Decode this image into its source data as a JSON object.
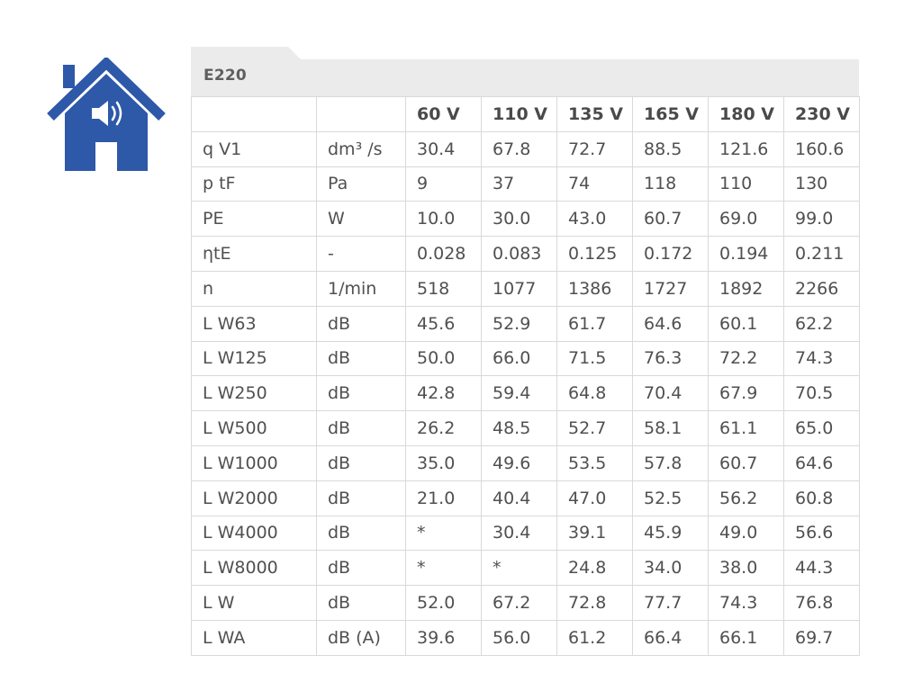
{
  "colors": {
    "house": "#2e58a8",
    "header_band": "#ebebeb",
    "grid": "#d9d9d9",
    "text": "#505050"
  },
  "icon": {
    "name": "house-speaker-icon"
  },
  "table": {
    "title": "E220",
    "columns": [
      "",
      "",
      "60 V",
      "110 V",
      "135 V",
      "165 V",
      "180 V",
      "230 V"
    ],
    "rows": [
      {
        "param": "q V1",
        "unit": "dm³ /s",
        "values": [
          "30.4",
          "67.8",
          "72.7",
          "88.5",
          "121.6",
          "160.6"
        ]
      },
      {
        "param": "p tF",
        "unit": "Pa",
        "values": [
          "9",
          "37",
          "74",
          "118",
          "110",
          "130"
        ]
      },
      {
        "param": "PE",
        "unit": "W",
        "values": [
          "10.0",
          "30.0",
          "43.0",
          "60.7",
          "69.0",
          "99.0"
        ]
      },
      {
        "param": "ηtE",
        "unit": "-",
        "values": [
          "0.028",
          "0.083",
          "0.125",
          "0.172",
          "0.194",
          "0.211"
        ]
      },
      {
        "param": "n",
        "unit": "1/min",
        "values": [
          "518",
          "1077",
          "1386",
          "1727",
          "1892",
          "2266"
        ]
      },
      {
        "param": "L W63",
        "unit": "dB",
        "values": [
          "45.6",
          "52.9",
          "61.7",
          "64.6",
          "60.1",
          "62.2"
        ]
      },
      {
        "param": "L W125",
        "unit": "dB",
        "values": [
          "50.0",
          "66.0",
          "71.5",
          "76.3",
          "72.2",
          "74.3"
        ]
      },
      {
        "param": "L W250",
        "unit": "dB",
        "values": [
          "42.8",
          "59.4",
          "64.8",
          "70.4",
          "67.9",
          "70.5"
        ]
      },
      {
        "param": "L W500",
        "unit": "dB",
        "values": [
          "26.2",
          "48.5",
          "52.7",
          "58.1",
          "61.1",
          "65.0"
        ]
      },
      {
        "param": "L W1000",
        "unit": "dB",
        "values": [
          "35.0",
          "49.6",
          "53.5",
          "57.8",
          "60.7",
          "64.6"
        ]
      },
      {
        "param": "L W2000",
        "unit": "dB",
        "values": [
          "21.0",
          "40.4",
          "47.0",
          "52.5",
          "56.2",
          "60.8"
        ]
      },
      {
        "param": "L W4000",
        "unit": "dB",
        "values": [
          "*",
          "30.4",
          "39.1",
          "45.9",
          "49.0",
          "56.6"
        ]
      },
      {
        "param": "L W8000",
        "unit": "dB",
        "values": [
          "*",
          "*",
          "24.8",
          "34.0",
          "38.0",
          "44.3"
        ]
      },
      {
        "param": "L W",
        "unit": "dB",
        "values": [
          "52.0",
          "67.2",
          "72.8",
          "77.7",
          "74.3",
          "76.8"
        ]
      },
      {
        "param": "L WA",
        "unit": "dB (A)",
        "values": [
          "39.6",
          "56.0",
          "61.2",
          "66.4",
          "66.1",
          "69.7"
        ]
      }
    ]
  }
}
